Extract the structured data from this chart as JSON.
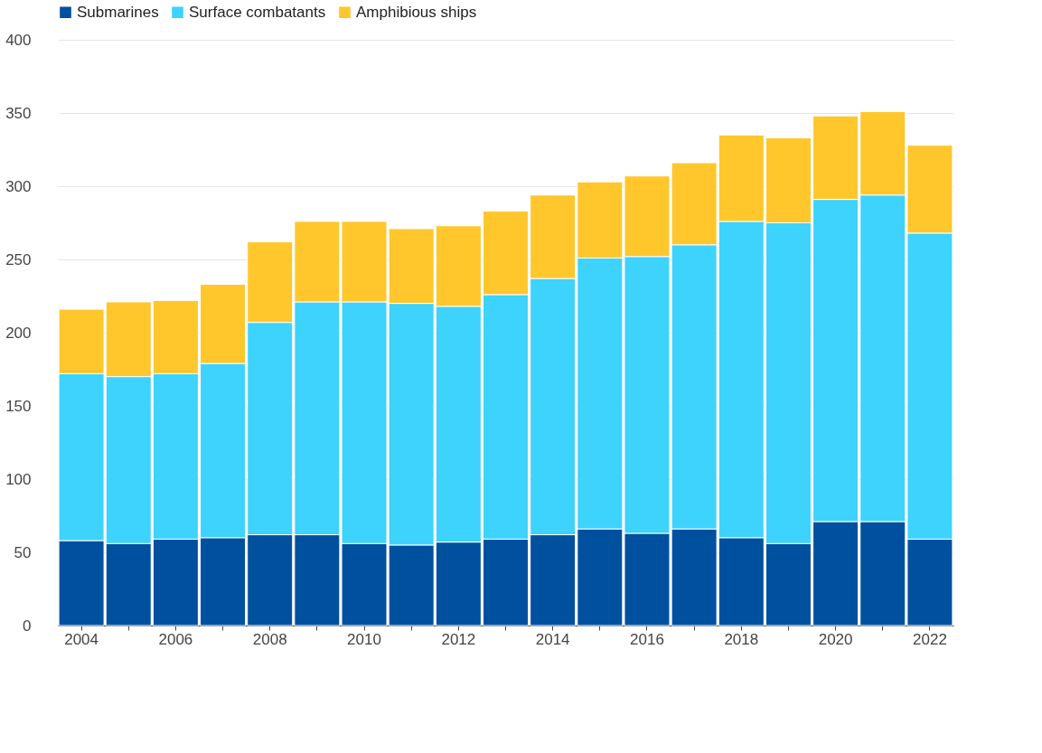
{
  "chart_data": {
    "type": "bar",
    "stacked": true,
    "categories": [
      "2004",
      null,
      "2006",
      null,
      "2008",
      null,
      "2010",
      null,
      "2012",
      null,
      "2014",
      null,
      "2016",
      null,
      "2018",
      null,
      "2020",
      null,
      "2022"
    ],
    "series": [
      {
        "name": "Submarines",
        "color": "#0050a0",
        "values": [
          58,
          56,
          59,
          60,
          62,
          62,
          56,
          55,
          57,
          59,
          62,
          66,
          63,
          66,
          60,
          56,
          71,
          71,
          59
        ]
      },
      {
        "name": "Surface combatants",
        "color": "#3dd3fc",
        "values": [
          114,
          114,
          113,
          119,
          145,
          159,
          165,
          165,
          161,
          167,
          175,
          185,
          189,
          194,
          216,
          219,
          220,
          223,
          209
        ]
      },
      {
        "name": "Amphibious ships",
        "color": "#ffc72c",
        "values": [
          44,
          51,
          50,
          54,
          55,
          55,
          55,
          51,
          55,
          57,
          57,
          52,
          55,
          56,
          59,
          58,
          57,
          57,
          60
        ]
      }
    ],
    "ylim": [
      0,
      400
    ],
    "yticks": [
      0,
      50,
      100,
      150,
      200,
      250,
      300,
      350,
      400
    ],
    "grid": "y",
    "legend": "top left"
  }
}
